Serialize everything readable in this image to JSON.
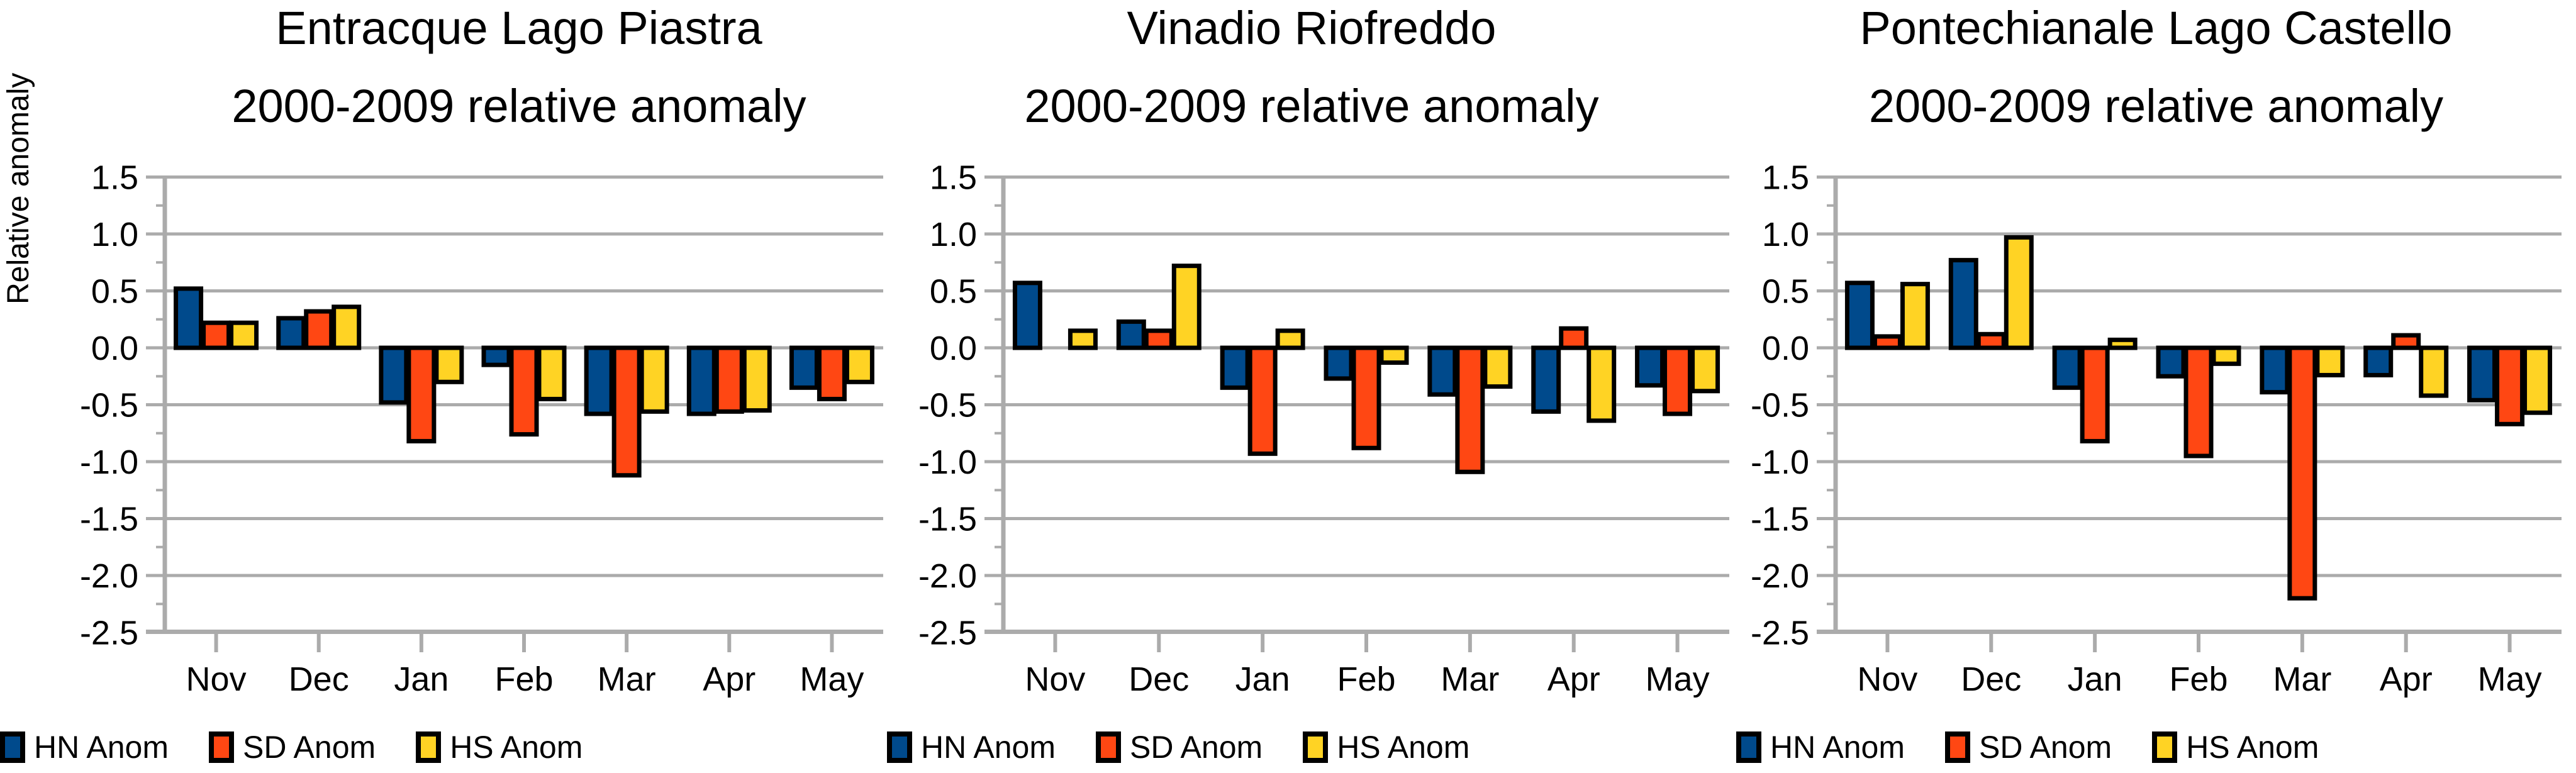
{
  "figure": {
    "background": "#FFFFFF",
    "ylabel": "Relative anomaly",
    "months": [
      "Nov",
      "Dec",
      "Jan",
      "Feb",
      "Mar",
      "Apr",
      "May"
    ],
    "legend_labels": [
      "HN Anom",
      "SD Anom",
      "HS Anom"
    ]
  },
  "colors": {
    "hn_blue": "#004A8C",
    "sd_orange": "#FF4713",
    "hs_yellow": "#FFD324",
    "grid_gray": "#ABABAB",
    "bar_outline": "#000000",
    "text": "#000000"
  },
  "chart_data": [
    {
      "type": "bar",
      "title": "Entracque Lago Piastra",
      "subtitle": "2000-2009 relative anomaly",
      "ylabel": "Relative anomaly",
      "categories": [
        "Nov",
        "Dec",
        "Jan",
        "Feb",
        "Mar",
        "Apr",
        "May"
      ],
      "series": [
        {
          "name": "HN Anom",
          "color": "#004A8C",
          "values": [
            0.52,
            0.26,
            -0.48,
            -0.15,
            -0.58,
            -0.58,
            -0.35
          ]
        },
        {
          "name": "SD Anom",
          "color": "#FF4713",
          "values": [
            0.22,
            0.32,
            -0.82,
            -0.76,
            -1.12,
            -0.56,
            -0.45
          ]
        },
        {
          "name": "HS Anom",
          "color": "#FFD324",
          "values": [
            0.22,
            0.36,
            -0.3,
            -0.45,
            -0.56,
            -0.55,
            -0.3
          ]
        }
      ],
      "ylim": [
        -2.5,
        1.5
      ],
      "ytick_step": 0.5,
      "grid": true,
      "legend_position": "bottom"
    },
    {
      "type": "bar",
      "title": "Vinadio Riofreddo",
      "subtitle": "2000-2009 relative anomaly",
      "categories": [
        "Nov",
        "Dec",
        "Jan",
        "Feb",
        "Mar",
        "Apr",
        "May"
      ],
      "series": [
        {
          "name": "HN Anom",
          "color": "#004A8C",
          "values": [
            0.57,
            0.23,
            -0.35,
            -0.27,
            -0.41,
            -0.56,
            -0.33
          ]
        },
        {
          "name": "SD Anom",
          "color": "#FF4713",
          "values": [
            0.0,
            0.15,
            -0.93,
            -0.88,
            -1.09,
            0.17,
            -0.58
          ]
        },
        {
          "name": "HS Anom",
          "color": "#FFD324",
          "values": [
            0.15,
            0.72,
            0.15,
            -0.13,
            -0.34,
            -0.64,
            -0.38
          ]
        }
      ],
      "ylim": [
        -2.5,
        1.5
      ],
      "ytick_step": 0.5,
      "grid": true,
      "legend_position": "bottom"
    },
    {
      "type": "bar",
      "title": "Pontechianale Lago Castello",
      "subtitle": "2000-2009 relative anomaly",
      "categories": [
        "Nov",
        "Dec",
        "Jan",
        "Feb",
        "Mar",
        "Apr",
        "May"
      ],
      "series": [
        {
          "name": "HN Anom",
          "color": "#004A8C",
          "values": [
            0.57,
            0.77,
            -0.35,
            -0.25,
            -0.39,
            -0.24,
            -0.46
          ]
        },
        {
          "name": "SD Anom",
          "color": "#FF4713",
          "values": [
            0.1,
            0.12,
            -0.82,
            -0.95,
            -2.2,
            0.11,
            -0.67
          ]
        },
        {
          "name": "HS Anom",
          "color": "#FFD324",
          "values": [
            0.56,
            0.97,
            0.07,
            -0.14,
            -0.24,
            -0.42,
            -0.57
          ]
        }
      ],
      "ylim": [
        -2.5,
        1.5
      ],
      "ytick_step": 0.5,
      "grid": true,
      "legend_position": "bottom"
    }
  ]
}
